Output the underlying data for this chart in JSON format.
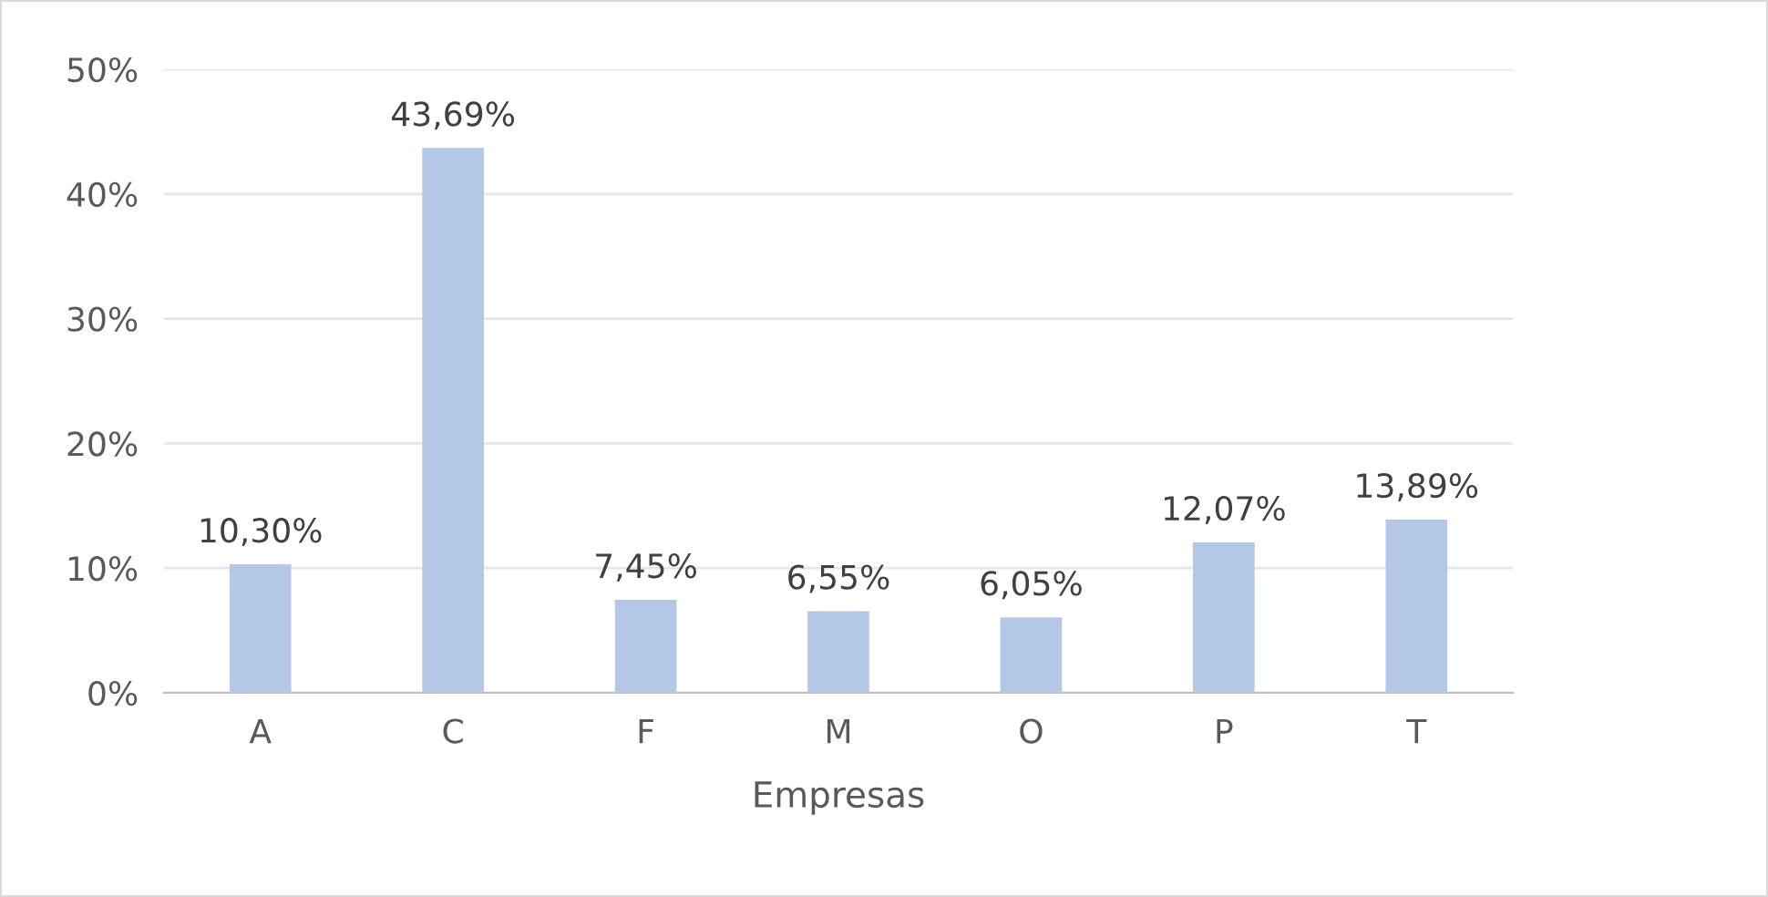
{
  "chart_data": {
    "type": "bar",
    "xlabel": "Empresas",
    "categories": [
      "A",
      "C",
      "F",
      "M",
      "O",
      "P",
      "T"
    ],
    "values": [
      10.3,
      43.69,
      7.45,
      6.55,
      6.05,
      12.07,
      13.89
    ],
    "value_labels": [
      "10,30%",
      "43,69%",
      "7,45%",
      "6,55%",
      "6,05%",
      "12,07%",
      "13,89%"
    ],
    "color": "#b4c7e7",
    "ylim": [
      0,
      50
    ],
    "yticks": [
      {
        "value": 0,
        "label": "0%"
      },
      {
        "value": 10,
        "label": "10%"
      },
      {
        "value": 20,
        "label": "20%"
      },
      {
        "value": 30,
        "label": "30%"
      },
      {
        "value": 40,
        "label": "40%"
      },
      {
        "value": 50,
        "label": "50%"
      }
    ],
    "grid": "y",
    "legend": false
  }
}
